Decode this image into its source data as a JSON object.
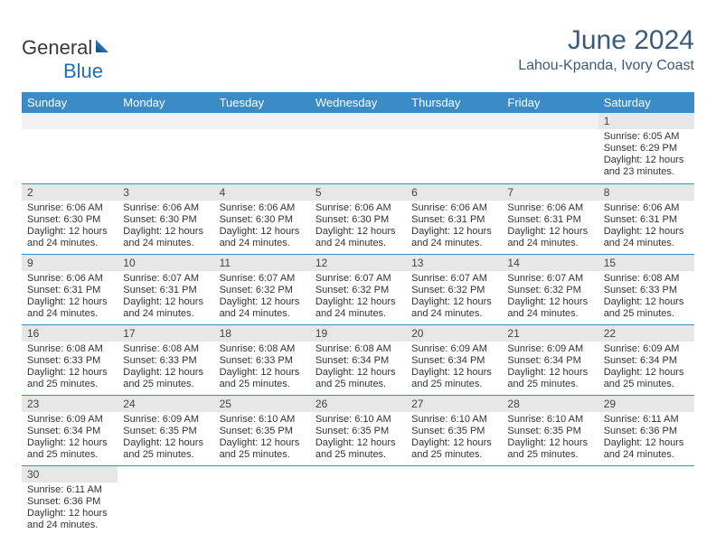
{
  "brand": {
    "part1": "General",
    "part2": "Blue"
  },
  "title": "June 2024",
  "location": "Lahou-Kpanda, Ivory Coast",
  "colors": {
    "header_bg": "#3b8bc6",
    "header_text": "#ffffff",
    "title_color": "#3c5b7a",
    "daynum_bg": "#e7e7e7",
    "row_border": "#3b8bc6",
    "logo_blue": "#1f6fb2"
  },
  "weekdays": [
    "Sunday",
    "Monday",
    "Tuesday",
    "Wednesday",
    "Thursday",
    "Friday",
    "Saturday"
  ],
  "weeks": [
    [
      null,
      null,
      null,
      null,
      null,
      null,
      {
        "n": "1",
        "sr": "Sunrise: 6:05 AM",
        "ss": "Sunset: 6:29 PM",
        "dl": "Daylight: 12 hours and 23 minutes."
      }
    ],
    [
      {
        "n": "2",
        "sr": "Sunrise: 6:06 AM",
        "ss": "Sunset: 6:30 PM",
        "dl": "Daylight: 12 hours and 24 minutes."
      },
      {
        "n": "3",
        "sr": "Sunrise: 6:06 AM",
        "ss": "Sunset: 6:30 PM",
        "dl": "Daylight: 12 hours and 24 minutes."
      },
      {
        "n": "4",
        "sr": "Sunrise: 6:06 AM",
        "ss": "Sunset: 6:30 PM",
        "dl": "Daylight: 12 hours and 24 minutes."
      },
      {
        "n": "5",
        "sr": "Sunrise: 6:06 AM",
        "ss": "Sunset: 6:30 PM",
        "dl": "Daylight: 12 hours and 24 minutes."
      },
      {
        "n": "6",
        "sr": "Sunrise: 6:06 AM",
        "ss": "Sunset: 6:31 PM",
        "dl": "Daylight: 12 hours and 24 minutes."
      },
      {
        "n": "7",
        "sr": "Sunrise: 6:06 AM",
        "ss": "Sunset: 6:31 PM",
        "dl": "Daylight: 12 hours and 24 minutes."
      },
      {
        "n": "8",
        "sr": "Sunrise: 6:06 AM",
        "ss": "Sunset: 6:31 PM",
        "dl": "Daylight: 12 hours and 24 minutes."
      }
    ],
    [
      {
        "n": "9",
        "sr": "Sunrise: 6:06 AM",
        "ss": "Sunset: 6:31 PM",
        "dl": "Daylight: 12 hours and 24 minutes."
      },
      {
        "n": "10",
        "sr": "Sunrise: 6:07 AM",
        "ss": "Sunset: 6:31 PM",
        "dl": "Daylight: 12 hours and 24 minutes."
      },
      {
        "n": "11",
        "sr": "Sunrise: 6:07 AM",
        "ss": "Sunset: 6:32 PM",
        "dl": "Daylight: 12 hours and 24 minutes."
      },
      {
        "n": "12",
        "sr": "Sunrise: 6:07 AM",
        "ss": "Sunset: 6:32 PM",
        "dl": "Daylight: 12 hours and 24 minutes."
      },
      {
        "n": "13",
        "sr": "Sunrise: 6:07 AM",
        "ss": "Sunset: 6:32 PM",
        "dl": "Daylight: 12 hours and 24 minutes."
      },
      {
        "n": "14",
        "sr": "Sunrise: 6:07 AM",
        "ss": "Sunset: 6:32 PM",
        "dl": "Daylight: 12 hours and 24 minutes."
      },
      {
        "n": "15",
        "sr": "Sunrise: 6:08 AM",
        "ss": "Sunset: 6:33 PM",
        "dl": "Daylight: 12 hours and 25 minutes."
      }
    ],
    [
      {
        "n": "16",
        "sr": "Sunrise: 6:08 AM",
        "ss": "Sunset: 6:33 PM",
        "dl": "Daylight: 12 hours and 25 minutes."
      },
      {
        "n": "17",
        "sr": "Sunrise: 6:08 AM",
        "ss": "Sunset: 6:33 PM",
        "dl": "Daylight: 12 hours and 25 minutes."
      },
      {
        "n": "18",
        "sr": "Sunrise: 6:08 AM",
        "ss": "Sunset: 6:33 PM",
        "dl": "Daylight: 12 hours and 25 minutes."
      },
      {
        "n": "19",
        "sr": "Sunrise: 6:08 AM",
        "ss": "Sunset: 6:34 PM",
        "dl": "Daylight: 12 hours and 25 minutes."
      },
      {
        "n": "20",
        "sr": "Sunrise: 6:09 AM",
        "ss": "Sunset: 6:34 PM",
        "dl": "Daylight: 12 hours and 25 minutes."
      },
      {
        "n": "21",
        "sr": "Sunrise: 6:09 AM",
        "ss": "Sunset: 6:34 PM",
        "dl": "Daylight: 12 hours and 25 minutes."
      },
      {
        "n": "22",
        "sr": "Sunrise: 6:09 AM",
        "ss": "Sunset: 6:34 PM",
        "dl": "Daylight: 12 hours and 25 minutes."
      }
    ],
    [
      {
        "n": "23",
        "sr": "Sunrise: 6:09 AM",
        "ss": "Sunset: 6:34 PM",
        "dl": "Daylight: 12 hours and 25 minutes."
      },
      {
        "n": "24",
        "sr": "Sunrise: 6:09 AM",
        "ss": "Sunset: 6:35 PM",
        "dl": "Daylight: 12 hours and 25 minutes."
      },
      {
        "n": "25",
        "sr": "Sunrise: 6:10 AM",
        "ss": "Sunset: 6:35 PM",
        "dl": "Daylight: 12 hours and 25 minutes."
      },
      {
        "n": "26",
        "sr": "Sunrise: 6:10 AM",
        "ss": "Sunset: 6:35 PM",
        "dl": "Daylight: 12 hours and 25 minutes."
      },
      {
        "n": "27",
        "sr": "Sunrise: 6:10 AM",
        "ss": "Sunset: 6:35 PM",
        "dl": "Daylight: 12 hours and 25 minutes."
      },
      {
        "n": "28",
        "sr": "Sunrise: 6:10 AM",
        "ss": "Sunset: 6:35 PM",
        "dl": "Daylight: 12 hours and 25 minutes."
      },
      {
        "n": "29",
        "sr": "Sunrise: 6:11 AM",
        "ss": "Sunset: 6:36 PM",
        "dl": "Daylight: 12 hours and 24 minutes."
      }
    ],
    [
      {
        "n": "30",
        "sr": "Sunrise: 6:11 AM",
        "ss": "Sunset: 6:36 PM",
        "dl": "Daylight: 12 hours and 24 minutes."
      },
      null,
      null,
      null,
      null,
      null,
      null
    ]
  ]
}
